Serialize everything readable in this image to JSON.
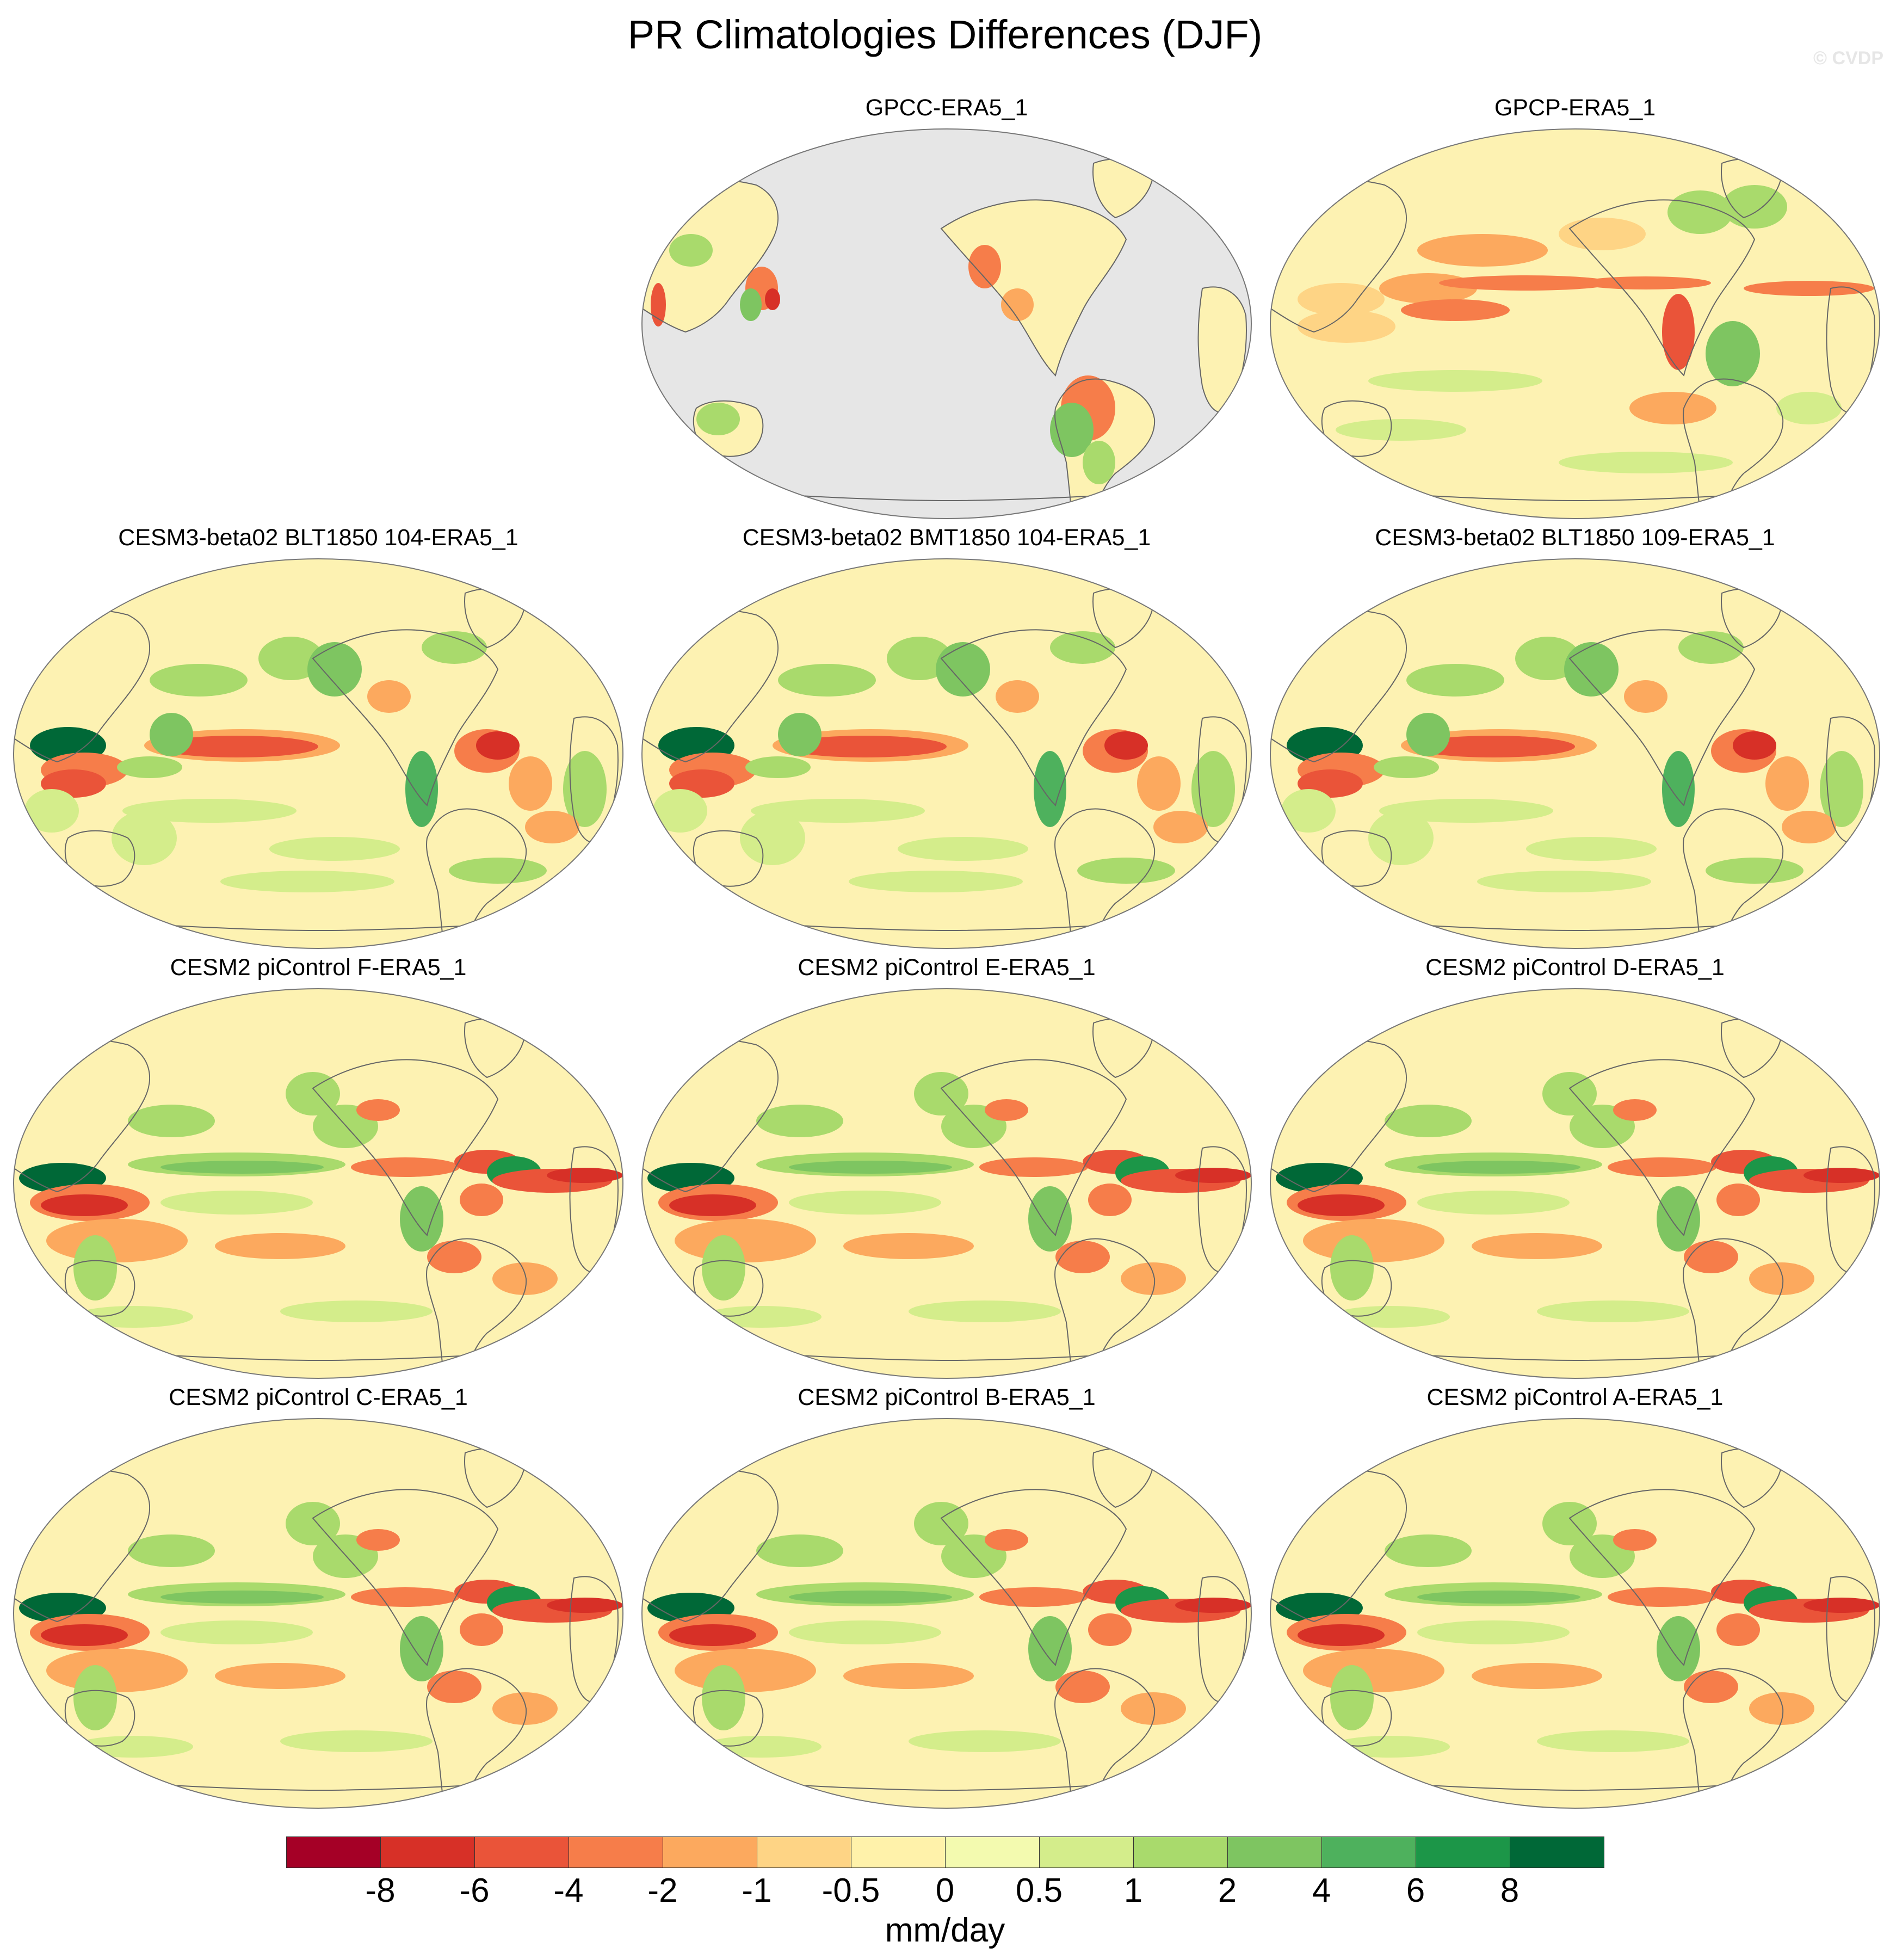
{
  "title": "PR Climatologies Differences (DJF)",
  "watermark": "© CVDP",
  "units": "mm/day",
  "panels": [
    {
      "title": "GPCC-ERA5_1",
      "land_only": true
    },
    {
      "title": "GPCP-ERA5_1",
      "land_only": false
    },
    {
      "title": "CESM3-beta02 BLT1850 104-ERA5_1",
      "land_only": false
    },
    {
      "title": "CESM3-beta02 BMT1850 104-ERA5_1",
      "land_only": false
    },
    {
      "title": "CESM3-beta02 BLT1850 109-ERA5_1",
      "land_only": false
    },
    {
      "title": "CESM2 piControl F-ERA5_1",
      "land_only": false
    },
    {
      "title": "CESM2 piControl E-ERA5_1",
      "land_only": false
    },
    {
      "title": "CESM2 piControl D-ERA5_1",
      "land_only": false
    },
    {
      "title": "CESM2 piControl C-ERA5_1",
      "land_only": false
    },
    {
      "title": "CESM2 piControl B-ERA5_1",
      "land_only": false
    },
    {
      "title": "CESM2 piControl A-ERA5_1",
      "land_only": false
    }
  ],
  "colorbar": {
    "colors": [
      "#a50026",
      "#d73027",
      "#ea5439",
      "#f67d4a",
      "#fca95e",
      "#fed485",
      "#fff2aa",
      "#f3faaf",
      "#d4ed8b",
      "#a9da6c",
      "#7ec561",
      "#4eb15d",
      "#1c9648",
      "#006837"
    ],
    "labels": [
      "-8",
      "-6",
      "-4",
      "-2",
      "-1",
      "-0.5",
      "0",
      "0.5",
      "1",
      "2",
      "4",
      "6",
      "8"
    ]
  },
  "colors": {
    "missing": "#e6e6e6",
    "coast": "#666666",
    "base": "#fdf2b2"
  }
}
